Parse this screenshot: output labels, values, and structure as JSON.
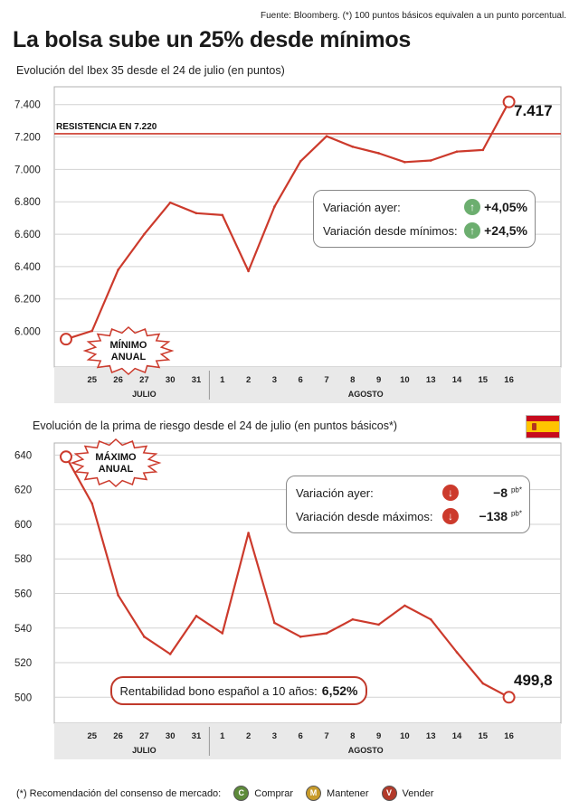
{
  "source": "Fuente: Bloomberg. (*) 100 puntos básicos equivalen a un punto porcentual.",
  "title": "La bolsa sube un 25% desde mínimos",
  "colors": {
    "line": "#cc3a2c",
    "grid": "#d2d2d2",
    "up": "#6cae6f",
    "down": "#cc3a2c"
  },
  "chart_data": [
    {
      "type": "line",
      "title": "",
      "subtitle": "Evolución del Ibex 35 desde el 24 de julio (en puntos)",
      "categories": [
        "",
        "25",
        "26",
        "27",
        "30",
        "31",
        "1",
        "2",
        "3",
        "6",
        "7",
        "8",
        "9",
        "10",
        "13",
        "14",
        "15",
        "16"
      ],
      "months": [
        {
          "label": "JULIO",
          "from": 1,
          "to": 5
        },
        {
          "label": "AGOSTO",
          "from": 6,
          "to": 17
        }
      ],
      "values": [
        5952,
        6003,
        6380,
        6600,
        6795,
        6730,
        6718,
        6372,
        6770,
        7050,
        7205,
        7140,
        7100,
        7045,
        7055,
        7110,
        7120,
        7417
      ],
      "yticks": [
        6000,
        6200,
        6400,
        6600,
        6800,
        7000,
        7200,
        7400
      ],
      "ylim": [
        5780,
        7510
      ],
      "grid": "horizontal",
      "resistance": {
        "value": 7220,
        "label": "RESISTENCIA EN 7.220"
      },
      "badge": {
        "line1": "MÍNIMO",
        "line2": "ANUAL"
      },
      "last_label": "7.417",
      "infobox": [
        {
          "label": "Variación ayer:",
          "value": "+4,05%",
          "icon": "arrow-up-icon"
        },
        {
          "label": "Variación desde mínimos:",
          "value": "+24,5%",
          "icon": "arrow-up-icon"
        }
      ]
    },
    {
      "type": "line",
      "title": "",
      "subtitle": "Evolución de la prima de riesgo desde el 24 de julio (en puntos básicos*)",
      "categories": [
        "",
        "25",
        "26",
        "27",
        "30",
        "31",
        "1",
        "2",
        "3",
        "6",
        "7",
        "8",
        "9",
        "10",
        "13",
        "14",
        "15",
        "16"
      ],
      "months": [
        {
          "label": "JULIO",
          "from": 1,
          "to": 5
        },
        {
          "label": "AGOSTO",
          "from": 6,
          "to": 17
        }
      ],
      "values": [
        639,
        612,
        559,
        535,
        525,
        547,
        537,
        595,
        543,
        535,
        537,
        545,
        542,
        553,
        545,
        526,
        508,
        500
      ],
      "yticks": [
        500,
        520,
        540,
        560,
        580,
        600,
        620,
        640
      ],
      "ylim": [
        485,
        647
      ],
      "grid": "horizontal",
      "badge": {
        "line1": "MÁXIMO",
        "line2": "ANUAL"
      },
      "last_label": "499,8",
      "infobox": [
        {
          "label": "Variación ayer:",
          "value": "−8",
          "unit": "pb*",
          "icon": "arrow-down-icon"
        },
        {
          "label": "Variación desde máximos:",
          "value": "−138",
          "unit": "pb*",
          "icon": "arrow-down-icon"
        }
      ]
    }
  ],
  "bono": {
    "label": "Rentabilidad bono español a 10 años:",
    "value": "6,52%"
  },
  "footnote": {
    "text": "(*) Recomendación del consenso de mercado:",
    "items": [
      {
        "letter": "C",
        "label": "Comprar"
      },
      {
        "letter": "M",
        "label": "Mantener"
      },
      {
        "letter": "V",
        "label": "Vender"
      }
    ]
  }
}
